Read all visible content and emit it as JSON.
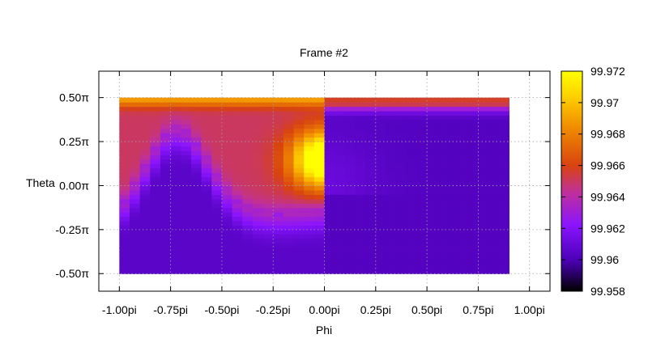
{
  "chart_data": {
    "type": "heatmap",
    "title": "Frame #2",
    "xlabel": "Phi",
    "ylabel": "Theta",
    "xlim": [
      -1.1,
      1.1
    ],
    "ylim": [
      -0.6,
      0.65
    ],
    "x_range": [
      -1.0,
      0.9
    ],
    "y_range": [
      -0.5,
      0.5
    ],
    "x_ticks": [
      {
        "value": -1.0,
        "label": "-1.00pi"
      },
      {
        "value": -0.75,
        "label": "-0.75pi"
      },
      {
        "value": -0.5,
        "label": "-0.50pi"
      },
      {
        "value": -0.25,
        "label": "-0.25pi"
      },
      {
        "value": 0.0,
        "label": "0.00pi"
      },
      {
        "value": 0.25,
        "label": "0.25pi"
      },
      {
        "value": 0.5,
        "label": "0.50pi"
      },
      {
        "value": 0.75,
        "label": "0.75pi"
      },
      {
        "value": 1.0,
        "label": "1.00pi"
      }
    ],
    "y_ticks": [
      {
        "value": 0.5,
        "label": "0.50π"
      },
      {
        "value": 0.25,
        "label": "0.25π"
      },
      {
        "value": 0.0,
        "label": "0.00π"
      },
      {
        "value": -0.25,
        "label": "-0.25π"
      },
      {
        "value": -0.5,
        "label": "-0.50π"
      }
    ],
    "grid": true,
    "colorbar": {
      "range": [
        99.958,
        99.972
      ],
      "ticks": [
        {
          "value": 99.972,
          "label": "99.972"
        },
        {
          "value": 99.97,
          "label": "99.97"
        },
        {
          "value": 99.968,
          "label": "99.968"
        },
        {
          "value": 99.966,
          "label": "99.966"
        },
        {
          "value": 99.964,
          "label": "99.964"
        },
        {
          "value": 99.962,
          "label": "99.962"
        },
        {
          "value": 99.96,
          "label": "99.96"
        },
        {
          "value": 99.958,
          "label": "99.958"
        }
      ],
      "colors": [
        "#000000",
        "#4b00b6",
        "#8a14ff",
        "#c0309a",
        "#d84310",
        "#f08a00",
        "#ffd700",
        "#ffff00"
      ]
    }
  }
}
